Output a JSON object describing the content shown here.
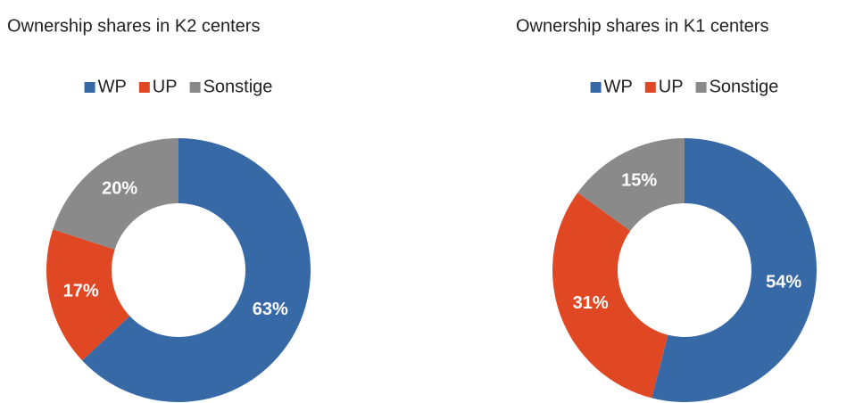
{
  "chart_data": [
    {
      "type": "pie",
      "donut": true,
      "title": "Ownership shares in K2 centers",
      "categories": [
        "WP",
        "UP",
        "Sonstige"
      ],
      "values": [
        63,
        17,
        20
      ],
      "value_labels": [
        "63%",
        "17%",
        "20%"
      ],
      "colors": [
        "#3769a6",
        "#e04823",
        "#8a8a8a"
      ]
    },
    {
      "type": "pie",
      "donut": true,
      "title": "Ownership shares in K1 centers",
      "categories": [
        "WP",
        "UP",
        "Sonstige"
      ],
      "values": [
        54,
        31,
        15
      ],
      "value_labels": [
        "54%",
        "31%",
        "15%"
      ],
      "colors": [
        "#3769a6",
        "#e04823",
        "#8a8a8a"
      ]
    }
  ]
}
